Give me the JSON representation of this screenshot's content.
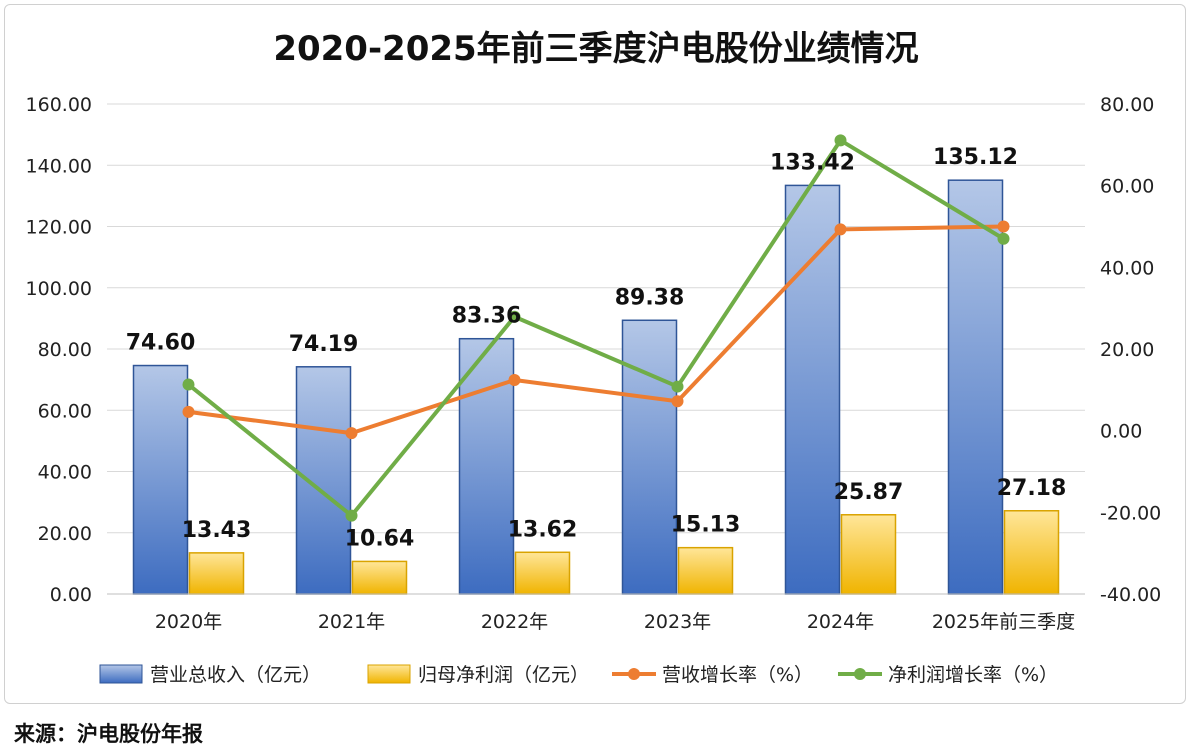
{
  "chart_data": {
    "type": "bar-line",
    "title": "2020-2025年前三季度沪电股份业绩情况",
    "categories": [
      "2020年",
      "2021年",
      "2022年",
      "2023年",
      "2024年",
      "2025年前三季度"
    ],
    "left_axis": {
      "min": 0,
      "max": 160,
      "step": 20,
      "tick_labels": [
        "0.00",
        "20.00",
        "40.00",
        "60.00",
        "80.00",
        "100.00",
        "120.00",
        "140.00",
        "160.00"
      ]
    },
    "right_axis": {
      "min": -40,
      "max": 80,
      "step": 20,
      "tick_labels": [
        "-40.00",
        "-20.00",
        "0.00",
        "20.00",
        "40.00",
        "60.00",
        "80.00"
      ]
    },
    "bar_series": [
      {
        "name": "营业总收入（亿元）",
        "axis": "left",
        "color": "#4472c4",
        "values": [
          74.6,
          74.19,
          83.36,
          89.38,
          133.42,
          135.12
        ],
        "labels": [
          "74.60",
          "74.19",
          "83.36",
          "89.38",
          "133.42",
          "135.12"
        ]
      },
      {
        "name": "归母净利润（亿元）",
        "axis": "left",
        "color": "#f2b800",
        "values": [
          13.43,
          10.64,
          13.62,
          15.13,
          25.87,
          27.18
        ],
        "labels": [
          "13.43",
          "10.64",
          "13.62",
          "15.13",
          "25.87",
          "27.18"
        ]
      }
    ],
    "line_series": [
      {
        "name": "营收增长率（%）",
        "axis": "right",
        "color": "#ed7d31",
        "values": [
          4.6,
          -0.6,
          12.4,
          7.2,
          49.3,
          50.0
        ]
      },
      {
        "name": "净利润增长率（%）",
        "axis": "right",
        "color": "#70ad47",
        "values": [
          11.3,
          -20.8,
          27.9,
          10.8,
          71.1,
          47.0
        ]
      }
    ],
    "legend_position": "bottom",
    "grid": true
  },
  "source": "来源：沪电股份年报"
}
